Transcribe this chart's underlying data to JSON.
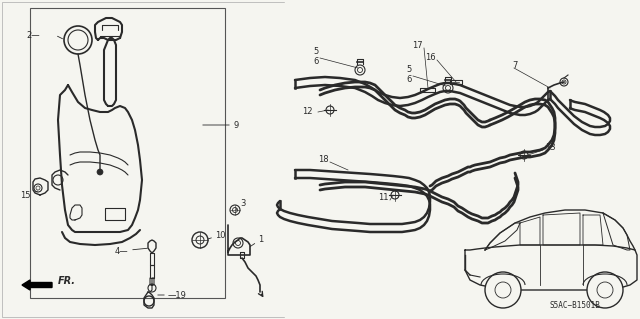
{
  "bg_color": "#f5f5f0",
  "diagram_code": "S5AC−B1501B",
  "fig_width": 6.4,
  "fig_height": 3.19,
  "dpi": 100,
  "line_color": "#2a2a2a",
  "label_color": "#1a1a1a",
  "lw_main": 1.4,
  "lw_thin": 0.8,
  "lw_detail": 0.5,
  "fs_label": 6.0,
  "fs_code": 5.5
}
